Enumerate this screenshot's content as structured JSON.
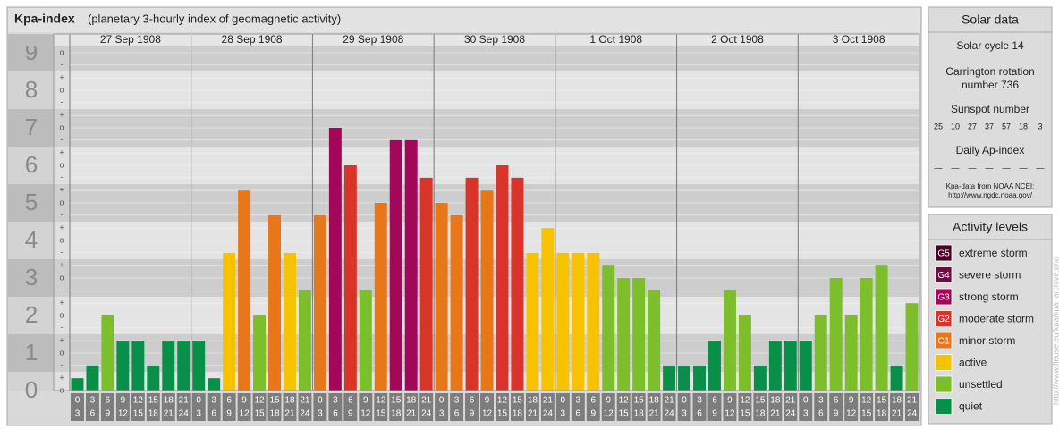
{
  "chart_data": {
    "type": "bar",
    "title": "Kpa-index",
    "subtitle": "(planetary 3-hourly index of geomagnetic activity)",
    "days": [
      "27 Sep 1908",
      "28 Sep 1908",
      "29 Sep 1908",
      "30 Sep 1908",
      "1 Oct 1908",
      "2 Oct 1908",
      "3 Oct 1908"
    ],
    "hour_ranges": [
      [
        0,
        3
      ],
      [
        3,
        6
      ],
      [
        6,
        9
      ],
      [
        9,
        12
      ],
      [
        12,
        15
      ],
      [
        15,
        18
      ],
      [
        18,
        21
      ],
      [
        21,
        24
      ]
    ],
    "values": [
      0.33,
      0.67,
      2,
      1.33,
      1.33,
      0.67,
      1.33,
      1.33,
      1.33,
      0.33,
      3.67,
      5.33,
      2,
      4.67,
      3.67,
      2.67,
      4.67,
      7,
      6,
      2.67,
      5,
      6.67,
      6.67,
      5.67,
      5,
      4.67,
      5.67,
      5.33,
      6,
      5.67,
      3.67,
      4.33,
      3.67,
      3.67,
      3.67,
      3.33,
      3,
      3,
      2.67,
      0.67,
      0.67,
      0.67,
      1.33,
      2.67,
      2,
      0.67,
      1.33,
      1.33,
      1.33,
      2,
      3,
      2,
      3,
      3.33,
      0.67,
      2.33
    ],
    "colors": [
      "#0a8f4a",
      "#0a8f4a",
      "#7cbf2a",
      "#0a8f4a",
      "#0a8f4a",
      "#0a8f4a",
      "#0a8f4a",
      "#0a8f4a",
      "#0a8f4a",
      "#0a8f4a",
      "#f7c200",
      "#e8771a",
      "#7cbf2a",
      "#e8771a",
      "#f7c200",
      "#7cbf2a",
      "#e8771a",
      "#a3075a",
      "#d8342a",
      "#7cbf2a",
      "#e8771a",
      "#a3075a",
      "#a3075a",
      "#d8342a",
      "#e8771a",
      "#e8771a",
      "#d8342a",
      "#e8771a",
      "#d8342a",
      "#d8342a",
      "#f7c200",
      "#f7c200",
      "#f7c200",
      "#f7c200",
      "#f7c200",
      "#7cbf2a",
      "#7cbf2a",
      "#7cbf2a",
      "#7cbf2a",
      "#0a8f4a",
      "#0a8f4a",
      "#0a8f4a",
      "#0a8f4a",
      "#7cbf2a",
      "#7cbf2a",
      "#0a8f4a",
      "#0a8f4a",
      "#0a8f4a",
      "#0a8f4a",
      "#7cbf2a",
      "#7cbf2a",
      "#7cbf2a",
      "#7cbf2a",
      "#7cbf2a",
      "#0a8f4a",
      "#7cbf2a"
    ],
    "ylim": [
      0,
      9.5
    ],
    "yticks": [
      0,
      1,
      2,
      3,
      4,
      5,
      6,
      7,
      8,
      9
    ],
    "minor_yticks": [
      {
        "value": 0,
        "label": "o"
      },
      {
        "value": 0.33,
        "label": "+"
      },
      {
        "value": 0.67,
        "label": "-"
      },
      {
        "value": 1,
        "label": "o"
      },
      {
        "value": 1.33,
        "label": "+"
      },
      {
        "value": 1.67,
        "label": "-"
      },
      {
        "value": 2,
        "label": "o"
      },
      {
        "value": 2.33,
        "label": "+"
      },
      {
        "value": 2.67,
        "label": "-"
      },
      {
        "value": 3,
        "label": "o"
      },
      {
        "value": 3.33,
        "label": "+"
      },
      {
        "value": 3.67,
        "label": "-"
      },
      {
        "value": 4,
        "label": "o"
      },
      {
        "value": 4.33,
        "label": "+"
      },
      {
        "value": 4.67,
        "label": "-"
      },
      {
        "value": 5,
        "label": "o"
      },
      {
        "value": 5.33,
        "label": "+"
      },
      {
        "value": 5.67,
        "label": "-"
      },
      {
        "value": 6,
        "label": "o"
      },
      {
        "value": 6.33,
        "label": "+"
      },
      {
        "value": 6.67,
        "label": "-"
      },
      {
        "value": 7,
        "label": "o"
      },
      {
        "value": 7.33,
        "label": "+"
      },
      {
        "value": 7.67,
        "label": "-"
      },
      {
        "value": 8,
        "label": "o"
      },
      {
        "value": 8.33,
        "label": "+"
      },
      {
        "value": 8.67,
        "label": "-"
      },
      {
        "value": 9,
        "label": "o"
      }
    ],
    "grid": true
  },
  "solar_data": {
    "title": "Solar data",
    "cycle": "Solar cycle 14",
    "carrington": [
      "Carrington rotation",
      "number 736"
    ],
    "sunspot_title": "Sunspot number",
    "sunspots": [
      25,
      10,
      27,
      37,
      57,
      18,
      3
    ],
    "ap_title": "Daily Ap-index",
    "ap": [
      "—",
      "—",
      "—",
      "—",
      "—",
      "—",
      "—"
    ],
    "source": [
      "Kpa-data from NOAA NCEI:",
      "http://www.ngdc.noaa.gov/"
    ]
  },
  "activity_levels": {
    "title": "Activity levels",
    "items": [
      {
        "code": "G5",
        "name": "extreme storm",
        "color": "#4a0026"
      },
      {
        "code": "G4",
        "name": "severe storm",
        "color": "#6e0b3f"
      },
      {
        "code": "G3",
        "name": "strong storm",
        "color": "#a3075a"
      },
      {
        "code": "G2",
        "name": "moderate storm",
        "color": "#d8342a"
      },
      {
        "code": "G1",
        "name": "minor storm",
        "color": "#e8771a"
      },
      {
        "code": "",
        "name": "active",
        "color": "#f7c200"
      },
      {
        "code": "",
        "name": "unsettled",
        "color": "#7cbf2a"
      },
      {
        "code": "",
        "name": "quiet",
        "color": "#0a8f4a"
      }
    ]
  },
  "watermark": "http://www.fleuse.eu/kpa/kpa_archive.php"
}
